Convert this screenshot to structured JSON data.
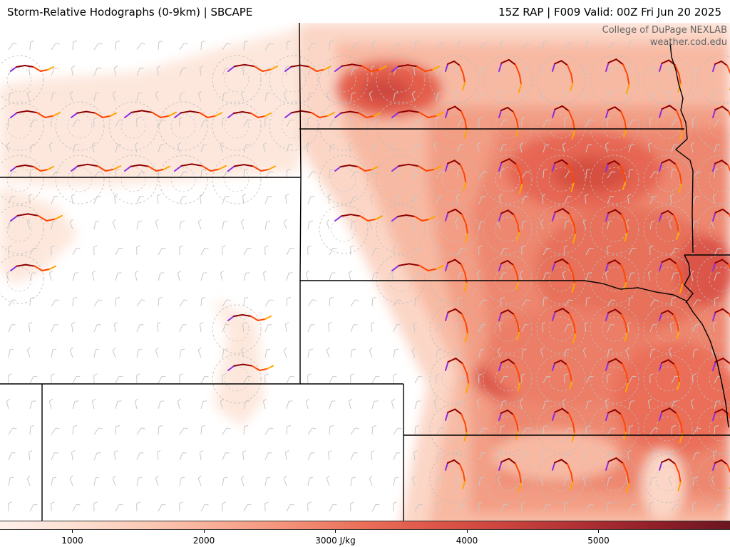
{
  "header": {
    "left_title": "Storm-Relative Hodographs (0-9km) | SBCAPE",
    "right_title": "15Z RAP | F009 Valid: 00Z Fri Jun 20 2025"
  },
  "credits": {
    "line1": "College of DuPage NEXLAB",
    "line2": "weather.cod.edu"
  },
  "colorbar": {
    "unit": "J/kg",
    "ticks": [
      {
        "value": 1000,
        "label": "1000"
      },
      {
        "value": 2000,
        "label": "2000"
      },
      {
        "value": 3000,
        "label": "3000 J/kg"
      },
      {
        "value": 4000,
        "label": "4000"
      },
      {
        "value": 5000,
        "label": "5000"
      }
    ],
    "range": [
      450,
      6000
    ],
    "colors": [
      "#fff1ea",
      "#fde0d3",
      "#fbc9b5",
      "#f8ac95",
      "#f38f77",
      "#ea6e58",
      "#dc5548",
      "#c9423d",
      "#ae2f33",
      "#8f1f2a",
      "#6b1622"
    ]
  },
  "hodograph_colors": {
    "low": "#8a2be2",
    "mid": "#8b0000",
    "upper": "#ff4500",
    "top": "#ffa500"
  }
}
